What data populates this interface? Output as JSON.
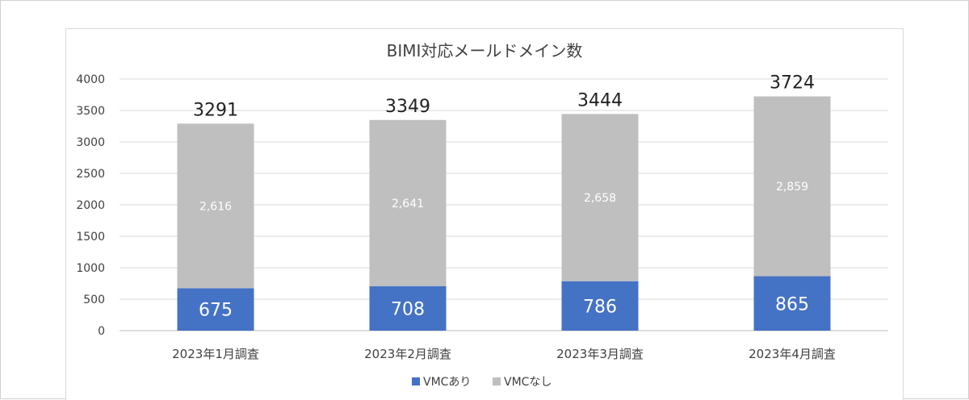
{
  "chart_data": {
    "type": "bar",
    "stacked": true,
    "title": "BIMI対応メールドメイン数",
    "categories": [
      "2023年1月調査",
      "2023年2月調査",
      "2023年3月調査",
      "2023年4月調査"
    ],
    "series": [
      {
        "name": "VMCあり",
        "values": [
          675,
          708,
          786,
          865
        ],
        "labels": [
          "675",
          "708",
          "786",
          "865"
        ],
        "color": "#4472c4"
      },
      {
        "name": "VMCなし",
        "values": [
          2616,
          2641,
          2658,
          2859
        ],
        "labels": [
          "2,616",
          "2,641",
          "2,658",
          "2,859"
        ],
        "color": "#bfbfbf"
      }
    ],
    "totals": [
      "3291",
      "3349",
      "3444",
      "3724"
    ],
    "ylim": [
      0,
      4000
    ],
    "yticks": [
      "0",
      "500",
      "1000",
      "1500",
      "2000",
      "2500",
      "3000",
      "3500",
      "4000"
    ],
    "grid": true,
    "legend_position": "bottom"
  }
}
